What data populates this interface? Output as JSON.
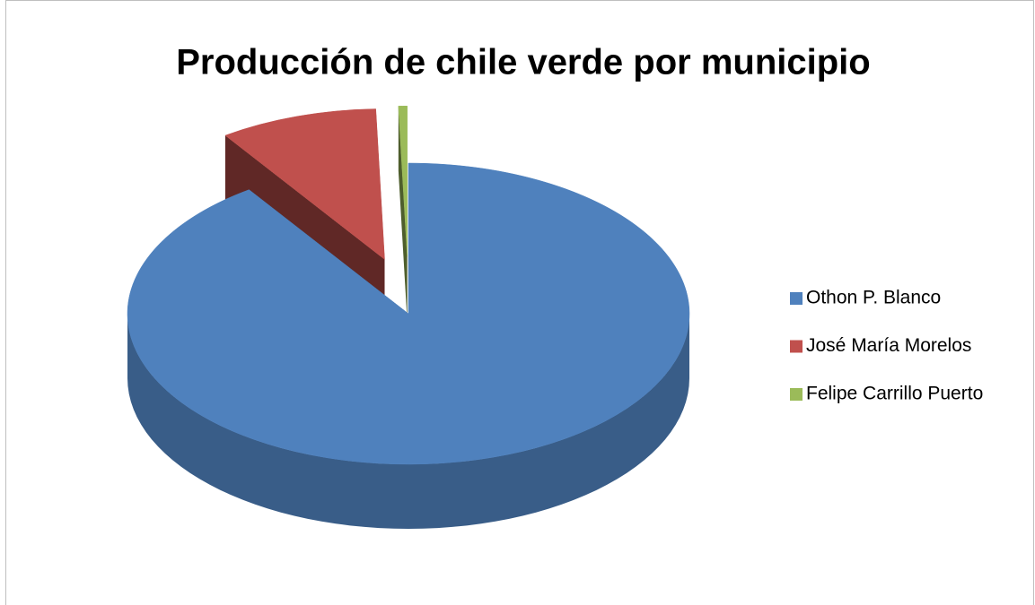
{
  "chart_data": {
    "type": "pie",
    "title": "Producción de chile verde por municipio",
    "categories": [
      "Othon P. Blanco",
      "José María Morelos",
      "Felipe Carrillo Puerto"
    ],
    "values": [
      90.4,
      9.1,
      0.5
    ],
    "colors": [
      "#4f81bd",
      "#c0504d",
      "#9bbb59"
    ],
    "legend": "right",
    "exploded": [
      false,
      true,
      true
    ]
  }
}
